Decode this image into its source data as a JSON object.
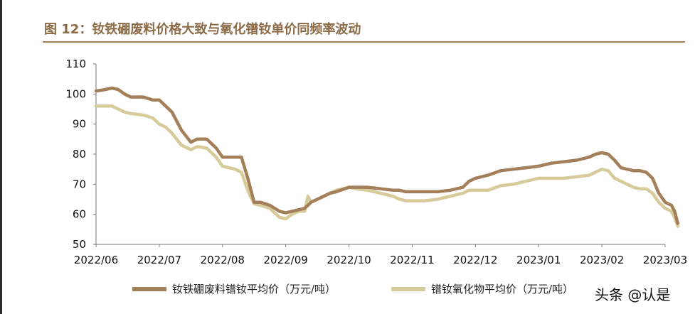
{
  "chart_data": {
    "type": "line",
    "title": "图 12：钕铁硼废料价格大致与氧化镨钕单价同频率波动",
    "xlabel": "",
    "ylabel": "",
    "ylim": [
      50,
      110
    ],
    "yticks": [
      50,
      60,
      70,
      80,
      90,
      100,
      110
    ],
    "xticks": [
      "2022/06",
      "2022/07",
      "2022/08",
      "2022/09",
      "2022/10",
      "2022/11",
      "2022/12",
      "2023/01",
      "2023/02",
      "2023/03"
    ],
    "grid": false,
    "legend_position": "bottom",
    "series": [
      {
        "name": "钕铁硼废料镨钕平均价（万元/吨）",
        "color": "#a37f5a",
        "x": [
          0,
          0.15,
          0.25,
          0.35,
          0.45,
          0.55,
          0.75,
          0.9,
          1.0,
          1.1,
          1.2,
          1.35,
          1.5,
          1.6,
          1.75,
          1.9,
          2.0,
          2.1,
          2.2,
          2.3,
          2.4,
          2.5,
          2.6,
          2.75,
          2.9,
          3.0,
          3.1,
          3.2,
          3.3,
          3.35,
          3.4,
          3.5,
          3.6,
          3.7,
          3.8,
          4.0,
          4.1,
          4.3,
          4.5,
          4.7,
          4.8,
          4.9,
          5.0,
          5.2,
          5.4,
          5.6,
          5.8,
          5.9,
          6.0,
          6.2,
          6.4,
          6.6,
          6.8,
          7.0,
          7.2,
          7.4,
          7.6,
          7.8,
          7.9,
          8.0,
          8.1,
          8.2,
          8.3,
          8.5,
          8.6,
          8.7,
          8.8,
          8.9,
          9.0,
          9.1,
          9.15,
          9.2
        ],
        "values": [
          101,
          101.5,
          102,
          101.5,
          100,
          99,
          99,
          98,
          98,
          96,
          94,
          88,
          84,
          85,
          85,
          82,
          79,
          79,
          79,
          79,
          72,
          64,
          64,
          63,
          61,
          60.5,
          61,
          61.5,
          62,
          63,
          64,
          65,
          66,
          67,
          67.5,
          69,
          69,
          69,
          68.5,
          68,
          68,
          67.5,
          67.5,
          67.5,
          67.5,
          68,
          69,
          71,
          72,
          73,
          74.5,
          75,
          75.5,
          76,
          77,
          77.5,
          78,
          79,
          80,
          80.5,
          80,
          78,
          75.5,
          74.5,
          74.5,
          74,
          72,
          67,
          64,
          63,
          61,
          57
        ]
      },
      {
        "name": "镨钕氧化物平均价（万元/吨）",
        "color": "#d8cb9b",
        "x": [
          0,
          0.15,
          0.25,
          0.35,
          0.45,
          0.55,
          0.75,
          0.9,
          1.0,
          1.1,
          1.2,
          1.35,
          1.5,
          1.6,
          1.75,
          1.9,
          2.0,
          2.1,
          2.2,
          2.3,
          2.4,
          2.5,
          2.6,
          2.75,
          2.9,
          3.0,
          3.1,
          3.2,
          3.3,
          3.35,
          3.4,
          3.5,
          3.6,
          3.7,
          3.8,
          4.0,
          4.1,
          4.3,
          4.5,
          4.7,
          4.8,
          4.9,
          5.0,
          5.2,
          5.4,
          5.6,
          5.8,
          5.9,
          6.0,
          6.2,
          6.4,
          6.6,
          6.8,
          7.0,
          7.2,
          7.4,
          7.6,
          7.8,
          7.9,
          8.0,
          8.1,
          8.2,
          8.3,
          8.5,
          8.6,
          8.7,
          8.8,
          8.9,
          9.0,
          9.1,
          9.15,
          9.2
        ],
        "values": [
          96,
          96,
          96,
          95,
          94,
          93.5,
          93,
          92,
          90,
          89,
          87,
          83,
          81.5,
          82.5,
          82,
          79,
          76,
          75.5,
          75,
          74,
          68,
          63.5,
          63,
          62,
          59,
          58.5,
          60,
          61,
          61,
          66,
          64,
          65,
          66,
          67,
          68,
          69,
          68.5,
          68,
          67,
          66,
          65,
          64.5,
          64.5,
          64.5,
          65,
          66,
          67,
          68,
          68,
          68,
          69.5,
          70,
          71,
          72,
          72,
          72,
          72.5,
          73,
          74,
          75,
          74.5,
          72,
          71,
          69,
          68.5,
          68.5,
          67,
          64,
          62,
          61,
          59,
          56
        ]
      }
    ]
  },
  "watermark": "头条 @认是"
}
